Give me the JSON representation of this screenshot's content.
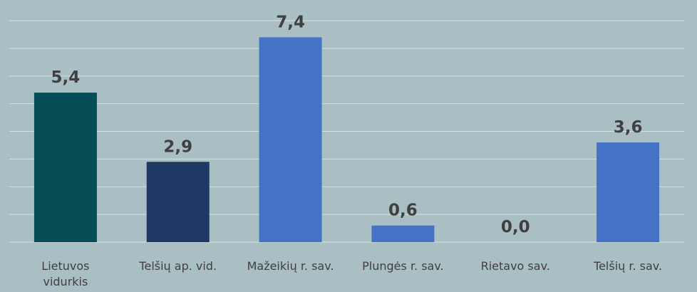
{
  "chart_data": {
    "type": "bar",
    "categories": [
      "Lietuvos vidurkis",
      "Telšių ap. vid.",
      "Mažeikių r. sav.",
      "Plungės r. sav.",
      "Rietavo sav.",
      "Telšių r. sav."
    ],
    "values": [
      5.4,
      2.9,
      7.4,
      0.6,
      0.0,
      3.6
    ],
    "value_labels": [
      "5,4",
      "2,9",
      "7,4",
      "0,6",
      "0,0",
      "3,6"
    ],
    "colors": [
      "#054d54",
      "#1f3864",
      "#4472c4",
      "#4472c4",
      "#4472c4",
      "#4472c4"
    ],
    "ylim": [
      0,
      8
    ],
    "yticks": [
      0,
      1,
      2,
      3,
      4,
      5,
      6,
      7,
      8
    ],
    "grid": true
  }
}
